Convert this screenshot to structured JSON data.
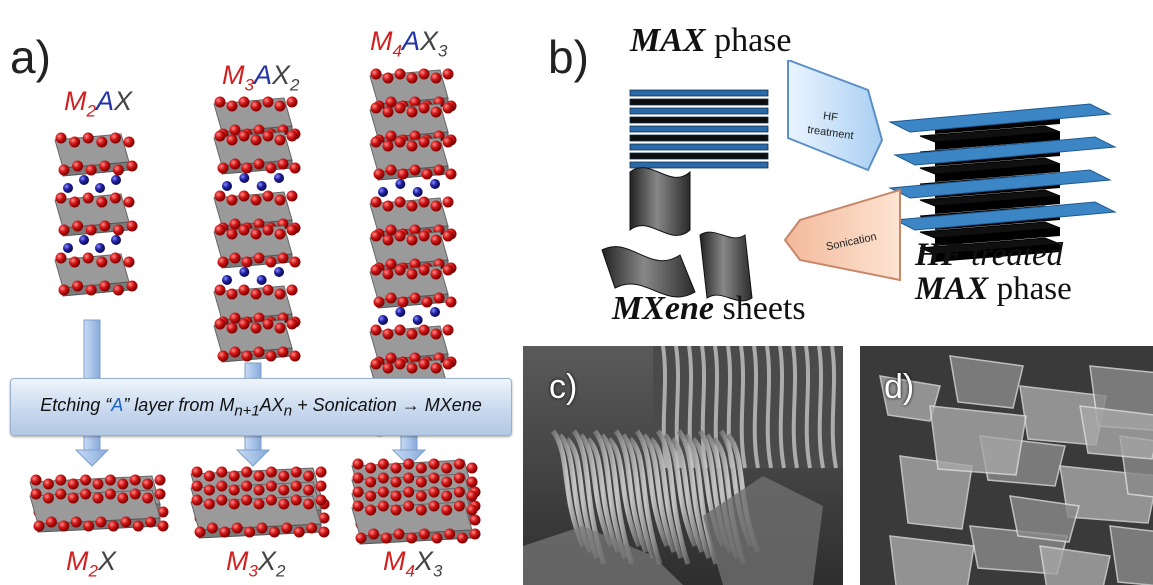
{
  "panel_a": {
    "letter": "a)",
    "top_formulas": [
      {
        "m": "M",
        "msub": "2",
        "a": "A",
        "x": "X",
        "xsub": ""
      },
      {
        "m": "M",
        "msub": "3",
        "a": "A",
        "x": "X",
        "xsub": "2"
      },
      {
        "m": "M",
        "msub": "4",
        "a": "A",
        "x": "X",
        "xsub": "3"
      }
    ],
    "bottom_formulas": [
      {
        "m": "M",
        "msub": "2",
        "x": "X",
        "xsub": ""
      },
      {
        "m": "M",
        "msub": "3",
        "x": "X",
        "xsub": "2"
      },
      {
        "m": "M",
        "msub": "4",
        "x": "X",
        "xsub": "3"
      }
    ],
    "etch_banner": {
      "part1": "Etching “",
      "a_letter": "A",
      "part2": "” layer from M",
      "sub1": "n+1",
      "part3": "AX",
      "sub2": "n",
      "part4": " + Sonication → MXene"
    }
  },
  "panel_b": {
    "letter": "b)",
    "max_phase": {
      "bold": "MAX",
      "rest": " phase"
    },
    "hf_arrow": {
      "line1": "HF",
      "line2": "treatment"
    },
    "sonication_arrow": "Sonication",
    "hf_treated": {
      "line1_bold": "HF",
      "line1_rest": " treated",
      "line2_bold": "MAX",
      "line2_rest": " phase"
    },
    "mxene_sheets": {
      "bold": "MXene",
      "rest": " sheets"
    }
  },
  "panel_c": {
    "letter": "c)"
  },
  "panel_d": {
    "letter": "d)"
  },
  "colors": {
    "m_atom": "#d21f1f",
    "a_atom": "#2233aa",
    "x_atom": "#444444",
    "arrow": "#9fbde3",
    "max_layer": "#2b6aa8",
    "mxene_layer": "#3d86c6"
  }
}
